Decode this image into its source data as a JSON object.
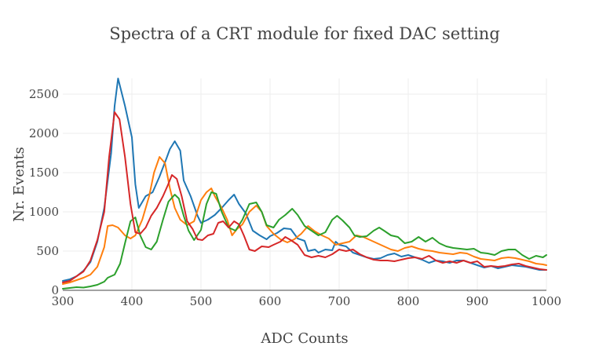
{
  "chart_data": {
    "type": "line",
    "title": "Spectra of a CRT module for fixed DAC setting",
    "xlabel": "ADC Counts",
    "ylabel": "Nr. Events",
    "xlim": [
      300,
      1000
    ],
    "ylim": [
      0,
      2700
    ],
    "xticks": [
      300,
      400,
      500,
      600,
      700,
      800,
      900,
      1000
    ],
    "yticks": [
      0,
      500,
      1000,
      1500,
      2000,
      2500
    ],
    "grid": true,
    "legend": "none",
    "series": [
      {
        "color": "#1f77b4",
        "points": [
          [
            300,
            120
          ],
          [
            310,
            140
          ],
          [
            320,
            180
          ],
          [
            330,
            250
          ],
          [
            340,
            360
          ],
          [
            350,
            620
          ],
          [
            360,
            1050
          ],
          [
            370,
            1750
          ],
          [
            375,
            2350
          ],
          [
            380,
            2700
          ],
          [
            390,
            2350
          ],
          [
            400,
            1950
          ],
          [
            405,
            1350
          ],
          [
            410,
            1050
          ],
          [
            420,
            1200
          ],
          [
            430,
            1250
          ],
          [
            440,
            1450
          ],
          [
            450,
            1680
          ],
          [
            455,
            1800
          ],
          [
            462,
            1900
          ],
          [
            470,
            1780
          ],
          [
            475,
            1400
          ],
          [
            485,
            1200
          ],
          [
            495,
            950
          ],
          [
            500,
            860
          ],
          [
            510,
            900
          ],
          [
            520,
            960
          ],
          [
            530,
            1050
          ],
          [
            540,
            1150
          ],
          [
            548,
            1220
          ],
          [
            555,
            1100
          ],
          [
            565,
            980
          ],
          [
            575,
            760
          ],
          [
            585,
            700
          ],
          [
            595,
            650
          ],
          [
            600,
            690
          ],
          [
            610,
            730
          ],
          [
            620,
            790
          ],
          [
            630,
            780
          ],
          [
            640,
            660
          ],
          [
            650,
            630
          ],
          [
            655,
            500
          ],
          [
            665,
            520
          ],
          [
            670,
            480
          ],
          [
            680,
            520
          ],
          [
            690,
            510
          ],
          [
            695,
            620
          ],
          [
            700,
            580
          ],
          [
            710,
            560
          ],
          [
            720,
            480
          ],
          [
            730,
            450
          ],
          [
            740,
            420
          ],
          [
            750,
            400
          ],
          [
            760,
            410
          ],
          [
            770,
            450
          ],
          [
            780,
            470
          ],
          [
            790,
            430
          ],
          [
            800,
            450
          ],
          [
            810,
            420
          ],
          [
            820,
            390
          ],
          [
            830,
            350
          ],
          [
            840,
            380
          ],
          [
            850,
            370
          ],
          [
            860,
            350
          ],
          [
            870,
            380
          ],
          [
            880,
            380
          ],
          [
            890,
            350
          ],
          [
            900,
            320
          ],
          [
            910,
            290
          ],
          [
            920,
            310
          ],
          [
            930,
            280
          ],
          [
            940,
            300
          ],
          [
            950,
            320
          ],
          [
            960,
            310
          ],
          [
            970,
            300
          ],
          [
            980,
            280
          ],
          [
            990,
            260
          ],
          [
            1000,
            260
          ]
        ]
      },
      {
        "color": "#ff7f0e",
        "points": [
          [
            300,
            80
          ],
          [
            310,
            100
          ],
          [
            320,
            130
          ],
          [
            330,
            160
          ],
          [
            340,
            200
          ],
          [
            350,
            300
          ],
          [
            360,
            550
          ],
          [
            365,
            820
          ],
          [
            372,
            830
          ],
          [
            380,
            800
          ],
          [
            390,
            700
          ],
          [
            398,
            660
          ],
          [
            405,
            700
          ],
          [
            415,
            900
          ],
          [
            425,
            1200
          ],
          [
            432,
            1500
          ],
          [
            440,
            1700
          ],
          [
            448,
            1620
          ],
          [
            455,
            1300
          ],
          [
            462,
            1050
          ],
          [
            470,
            900
          ],
          [
            480,
            830
          ],
          [
            490,
            880
          ],
          [
            500,
            1150
          ],
          [
            508,
            1250
          ],
          [
            515,
            1300
          ],
          [
            520,
            1200
          ],
          [
            530,
            1050
          ],
          [
            538,
            900
          ],
          [
            545,
            700
          ],
          [
            552,
            780
          ],
          [
            560,
            840
          ],
          [
            570,
            1000
          ],
          [
            580,
            1080
          ],
          [
            588,
            1000
          ],
          [
            595,
            820
          ],
          [
            605,
            720
          ],
          [
            615,
            650
          ],
          [
            625,
            610
          ],
          [
            635,
            650
          ],
          [
            645,
            720
          ],
          [
            655,
            820
          ],
          [
            665,
            750
          ],
          [
            675,
            700
          ],
          [
            685,
            660
          ],
          [
            695,
            580
          ],
          [
            705,
            600
          ],
          [
            715,
            620
          ],
          [
            725,
            700
          ],
          [
            735,
            680
          ],
          [
            745,
            640
          ],
          [
            755,
            600
          ],
          [
            765,
            560
          ],
          [
            775,
            520
          ],
          [
            785,
            500
          ],
          [
            795,
            540
          ],
          [
            805,
            560
          ],
          [
            815,
            530
          ],
          [
            825,
            510
          ],
          [
            835,
            500
          ],
          [
            845,
            480
          ],
          [
            855,
            470
          ],
          [
            865,
            460
          ],
          [
            875,
            480
          ],
          [
            885,
            470
          ],
          [
            895,
            430
          ],
          [
            905,
            400
          ],
          [
            915,
            390
          ],
          [
            925,
            380
          ],
          [
            935,
            410
          ],
          [
            945,
            420
          ],
          [
            955,
            410
          ],
          [
            965,
            390
          ],
          [
            975,
            370
          ],
          [
            985,
            340
          ],
          [
            995,
            330
          ],
          [
            1000,
            320
          ]
        ]
      },
      {
        "color": "#2ca02c",
        "points": [
          [
            300,
            20
          ],
          [
            310,
            30
          ],
          [
            320,
            40
          ],
          [
            330,
            35
          ],
          [
            340,
            50
          ],
          [
            350,
            70
          ],
          [
            360,
            110
          ],
          [
            365,
            160
          ],
          [
            375,
            200
          ],
          [
            383,
            340
          ],
          [
            390,
            600
          ],
          [
            398,
            880
          ],
          [
            405,
            930
          ],
          [
            412,
            700
          ],
          [
            420,
            550
          ],
          [
            428,
            520
          ],
          [
            436,
            620
          ],
          [
            445,
            900
          ],
          [
            453,
            1130
          ],
          [
            462,
            1220
          ],
          [
            468,
            1170
          ],
          [
            475,
            950
          ],
          [
            482,
            760
          ],
          [
            490,
            640
          ],
          [
            500,
            770
          ],
          [
            508,
            1100
          ],
          [
            515,
            1250
          ],
          [
            522,
            1230
          ],
          [
            530,
            1000
          ],
          [
            540,
            800
          ],
          [
            550,
            760
          ],
          [
            560,
            900
          ],
          [
            570,
            1100
          ],
          [
            580,
            1120
          ],
          [
            588,
            1000
          ],
          [
            595,
            830
          ],
          [
            605,
            800
          ],
          [
            613,
            900
          ],
          [
            622,
            960
          ],
          [
            632,
            1040
          ],
          [
            640,
            960
          ],
          [
            650,
            820
          ],
          [
            660,
            760
          ],
          [
            670,
            700
          ],
          [
            680,
            740
          ],
          [
            690,
            900
          ],
          [
            697,
            950
          ],
          [
            705,
            890
          ],
          [
            715,
            800
          ],
          [
            722,
            700
          ],
          [
            730,
            680
          ],
          [
            740,
            690
          ],
          [
            750,
            760
          ],
          [
            758,
            800
          ],
          [
            765,
            760
          ],
          [
            775,
            700
          ],
          [
            785,
            680
          ],
          [
            795,
            600
          ],
          [
            805,
            620
          ],
          [
            815,
            680
          ],
          [
            825,
            620
          ],
          [
            835,
            670
          ],
          [
            845,
            600
          ],
          [
            855,
            560
          ],
          [
            865,
            540
          ],
          [
            875,
            530
          ],
          [
            885,
            520
          ],
          [
            895,
            530
          ],
          [
            905,
            480
          ],
          [
            915,
            470
          ],
          [
            925,
            450
          ],
          [
            935,
            500
          ],
          [
            945,
            520
          ],
          [
            955,
            520
          ],
          [
            965,
            450
          ],
          [
            975,
            400
          ],
          [
            985,
            440
          ],
          [
            995,
            420
          ],
          [
            1000,
            450
          ]
        ]
      },
      {
        "color": "#d62728",
        "points": [
          [
            300,
            100
          ],
          [
            310,
            120
          ],
          [
            320,
            180
          ],
          [
            330,
            240
          ],
          [
            340,
            380
          ],
          [
            350,
            640
          ],
          [
            360,
            1000
          ],
          [
            367,
            1700
          ],
          [
            375,
            2270
          ],
          [
            382,
            2180
          ],
          [
            390,
            1700
          ],
          [
            398,
            1100
          ],
          [
            405,
            740
          ],
          [
            412,
            720
          ],
          [
            420,
            800
          ],
          [
            428,
            950
          ],
          [
            436,
            1050
          ],
          [
            445,
            1200
          ],
          [
            452,
            1340
          ],
          [
            458,
            1470
          ],
          [
            465,
            1420
          ],
          [
            472,
            1200
          ],
          [
            480,
            880
          ],
          [
            488,
            780
          ],
          [
            495,
            650
          ],
          [
            502,
            640
          ],
          [
            510,
            700
          ],
          [
            518,
            720
          ],
          [
            525,
            860
          ],
          [
            532,
            880
          ],
          [
            540,
            800
          ],
          [
            548,
            880
          ],
          [
            555,
            840
          ],
          [
            562,
            700
          ],
          [
            570,
            520
          ],
          [
            578,
            500
          ],
          [
            588,
            560
          ],
          [
            598,
            550
          ],
          [
            605,
            580
          ],
          [
            615,
            620
          ],
          [
            622,
            680
          ],
          [
            630,
            640
          ],
          [
            640,
            580
          ],
          [
            650,
            450
          ],
          [
            660,
            420
          ],
          [
            670,
            440
          ],
          [
            680,
            420
          ],
          [
            690,
            460
          ],
          [
            700,
            520
          ],
          [
            710,
            500
          ],
          [
            720,
            520
          ],
          [
            730,
            460
          ],
          [
            740,
            420
          ],
          [
            750,
            390
          ],
          [
            760,
            380
          ],
          [
            770,
            380
          ],
          [
            780,
            370
          ],
          [
            790,
            390
          ],
          [
            800,
            410
          ],
          [
            810,
            420
          ],
          [
            820,
            400
          ],
          [
            830,
            440
          ],
          [
            840,
            380
          ],
          [
            850,
            350
          ],
          [
            860,
            370
          ],
          [
            870,
            350
          ],
          [
            880,
            380
          ],
          [
            890,
            350
          ],
          [
            900,
            370
          ],
          [
            910,
            300
          ],
          [
            920,
            310
          ],
          [
            930,
            300
          ],
          [
            940,
            310
          ],
          [
            950,
            330
          ],
          [
            960,
            340
          ],
          [
            970,
            310
          ],
          [
            980,
            290
          ],
          [
            990,
            270
          ],
          [
            1000,
            260
          ]
        ]
      }
    ]
  }
}
